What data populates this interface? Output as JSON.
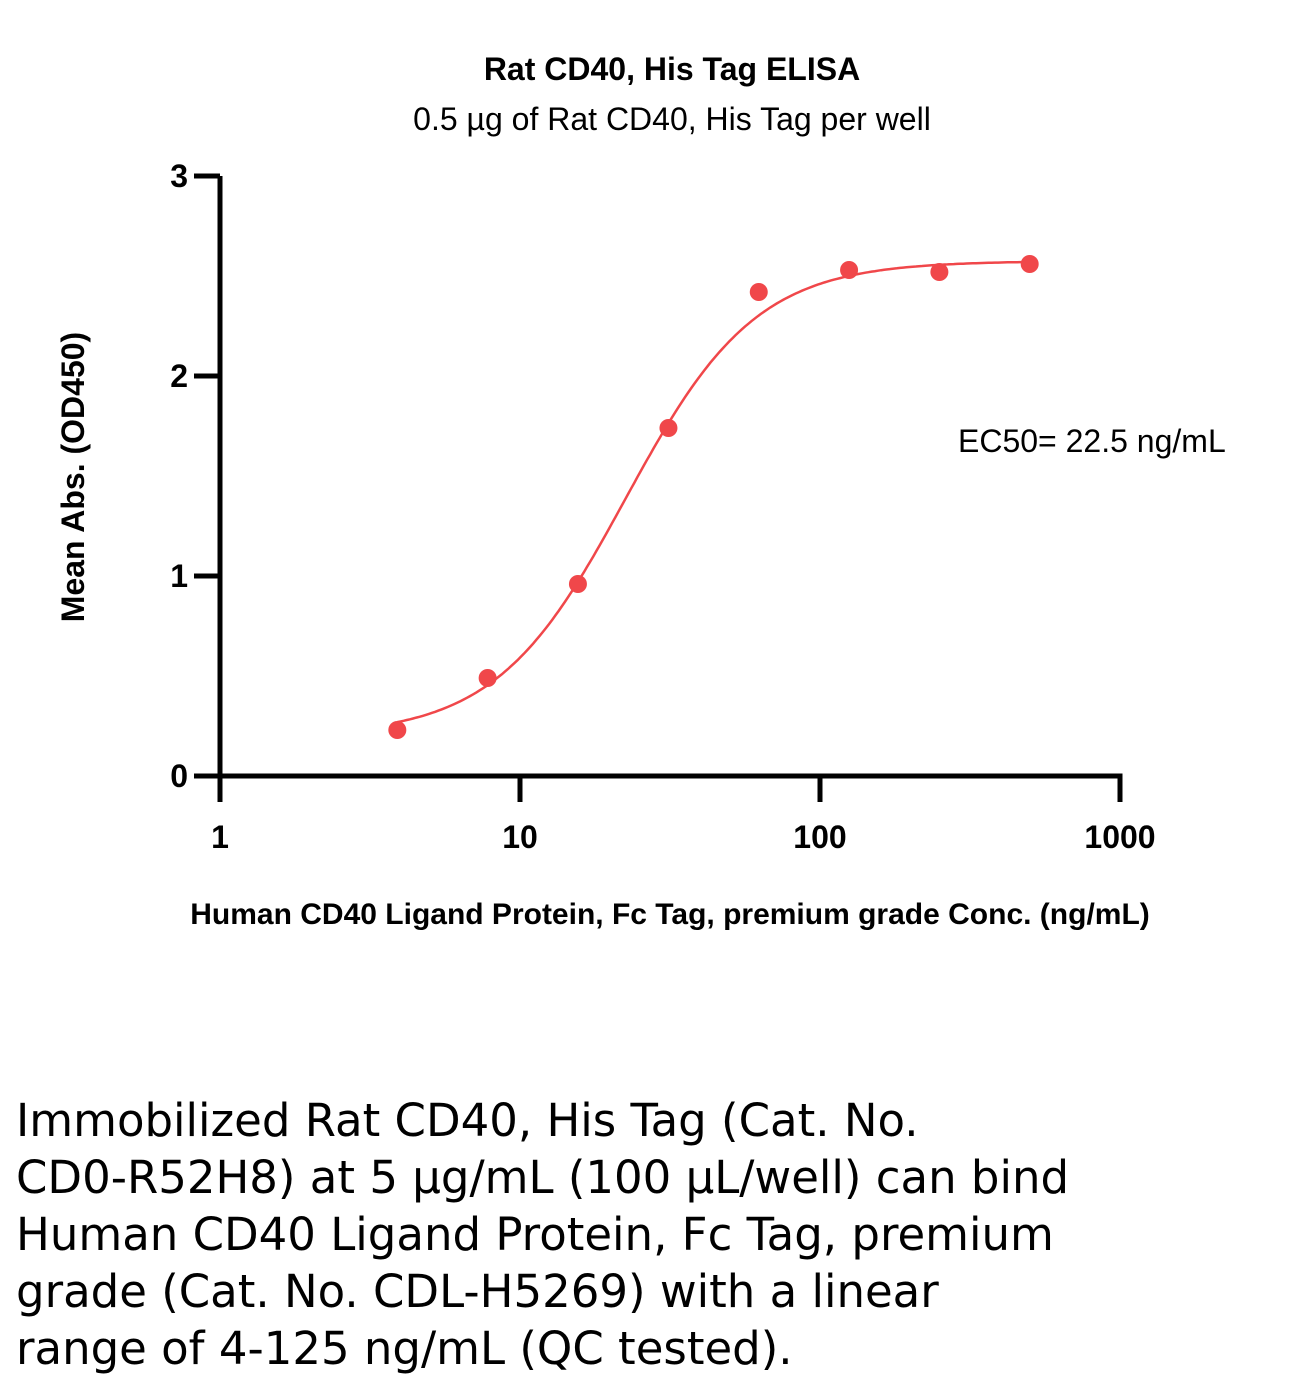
{
  "chart_data": {
    "type": "scatter",
    "title": "Rat CD40, His Tag ELISA",
    "subtitle": "0.5 µg of Rat CD40, His Tag per well",
    "xlabel": "Human CD40 Ligand Protein, Fc Tag, premium grade Conc. (ng/mL)",
    "ylabel": "Mean Abs. (OD450)",
    "xscale": "log",
    "xlim": [
      1,
      1000
    ],
    "ylim": [
      0,
      3
    ],
    "xticks": [
      1,
      10,
      100,
      1000
    ],
    "xtick_labels": [
      "1",
      "10",
      "100",
      "1000"
    ],
    "yticks": [
      0,
      1,
      2,
      3
    ],
    "ytick_labels": [
      "0",
      "1",
      "2",
      "3"
    ],
    "grid": false,
    "color": "#f0474a",
    "series": [
      {
        "x": [
          3.9,
          7.8,
          15.6,
          31.25,
          62.5,
          125,
          250,
          500
        ],
        "y": [
          0.23,
          0.49,
          0.96,
          1.74,
          2.42,
          2.53,
          2.52,
          2.56
        ]
      }
    ],
    "fit": {
      "model": "4PL",
      "bottom": 0.2,
      "top": 2.575,
      "ec50": 22.5,
      "hill": 2.0
    },
    "annotation": "EC50= 22.5 ng/mL"
  },
  "caption": {
    "lines": [
      "Immobilized Rat CD40, His Tag (Cat. No.",
      "CD0-R52H8) at 5 µg/mL (100 µL/well) can bind",
      "Human CD40 Ligand Protein, Fc Tag, premium",
      "grade (Cat. No. CDL-H5269) with a linear",
      "range of 4-125 ng/mL (QC tested)."
    ]
  }
}
